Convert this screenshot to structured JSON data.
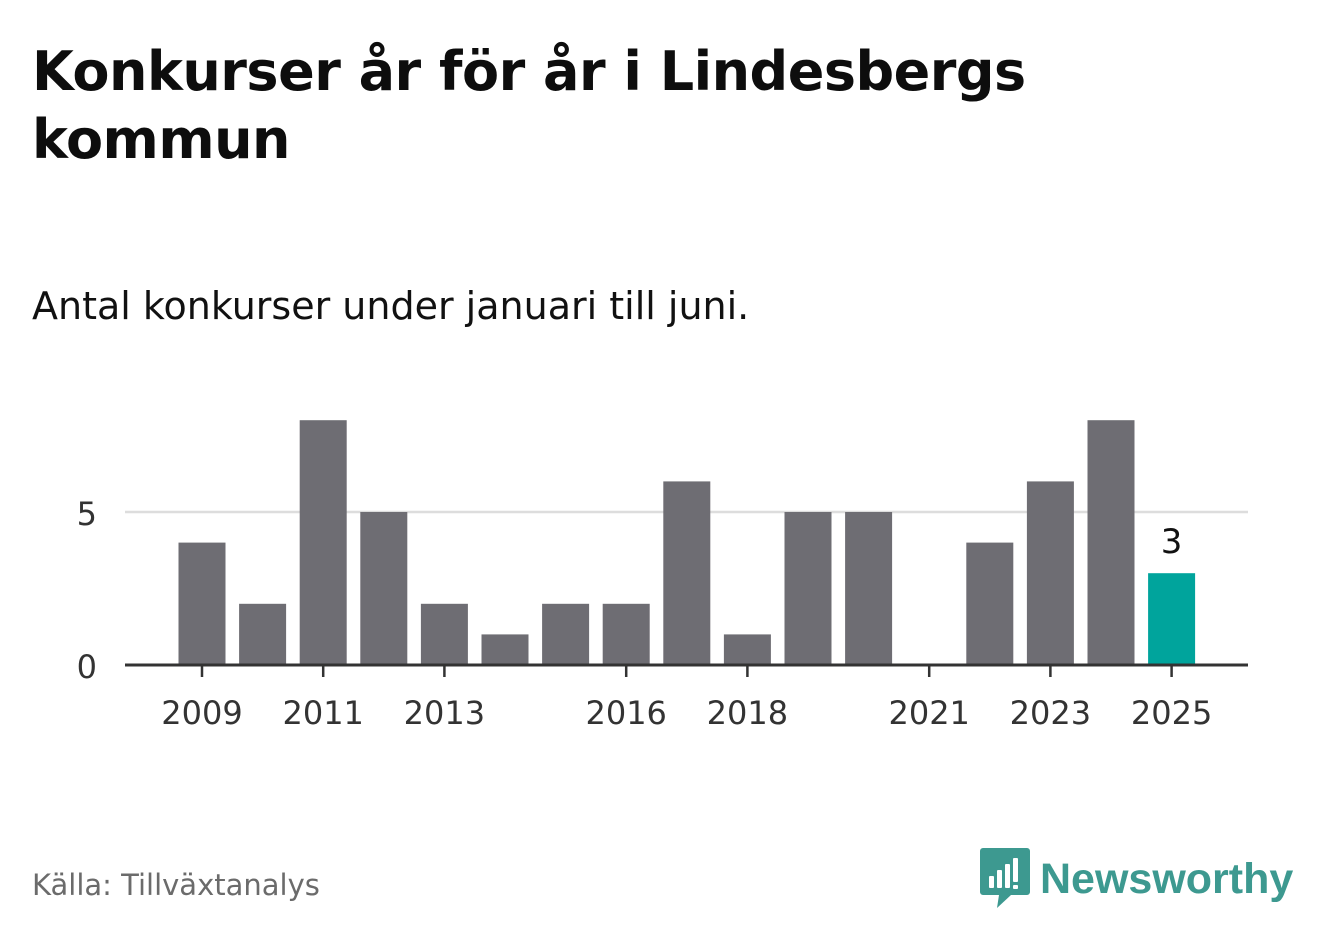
{
  "title": "Konkurser år för år i Lindesbergs kommun",
  "subtitle": "Antal konkurser under januari till juni.",
  "source": "Källa: Tillväxtanalys",
  "brand": {
    "name": "Newsworthy",
    "color": "#3d9990",
    "icon": "bar-chart-badge-icon"
  },
  "chart_data": {
    "type": "bar",
    "categories": [
      "2009",
      "2010",
      "2011",
      "2012",
      "2013",
      "2014",
      "2015",
      "2016",
      "2017",
      "2018",
      "2019",
      "2020",
      "2021",
      "2022",
      "2023",
      "2024",
      "2025"
    ],
    "values": [
      4,
      2,
      8,
      5,
      2,
      1,
      2,
      2,
      6,
      1,
      5,
      5,
      0,
      4,
      6,
      8,
      3
    ],
    "x_tick_labels": [
      "2009",
      "2011",
      "2013",
      "2016",
      "2018",
      "2021",
      "2023",
      "2025"
    ],
    "y_ticks": [
      0,
      5
    ],
    "ylim": [
      0,
      8
    ],
    "highlight": {
      "category": "2025",
      "label": "3"
    },
    "colors": {
      "bar": "#6e6d73",
      "highlight": "#00a49c",
      "grid": "#dddddd",
      "axis": "#333333"
    },
    "grid": true
  }
}
